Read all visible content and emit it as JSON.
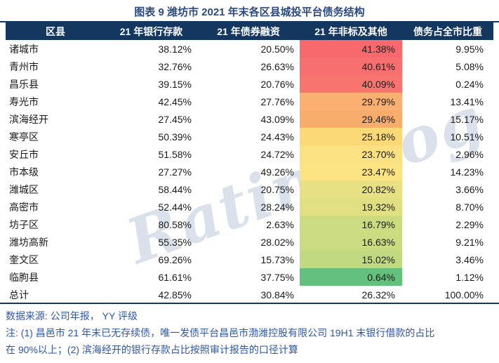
{
  "title": "图表 9 潍坊市 2021 年末各区县城投平台债务结构",
  "watermark": "Ratingdog",
  "colors": {
    "header_bg": "#14375f",
    "title_text": "#2b4a80",
    "note_text": "#3156a5",
    "rule": "#14375f",
    "watermark": "#c3cedd"
  },
  "table": {
    "columns": [
      "区县",
      "21 年银行存款",
      "21 年债券融资",
      "21 年非标及其他",
      "债务占全市比重"
    ],
    "rows": [
      {
        "name": "诸城市",
        "bank": "38.12%",
        "bond": "20.50%",
        "nonstd": "41.38%",
        "nonstd_bg": "#f7696c",
        "share": "9.95%"
      },
      {
        "name": "青州市",
        "bank": "32.76%",
        "bond": "26.63%",
        "nonstd": "40.61%",
        "nonstd_bg": "#f76f6e",
        "share": "5.08%"
      },
      {
        "name": "昌乐县",
        "bank": "39.15%",
        "bond": "20.76%",
        "nonstd": "40.09%",
        "nonstd_bg": "#f7746f",
        "share": "0.24%"
      },
      {
        "name": "寿光市",
        "bank": "42.45%",
        "bond": "27.76%",
        "nonstd": "29.79%",
        "nonstd_bg": "#f9b071",
        "share": "13.41%"
      },
      {
        "name": "滨海经开",
        "bank": "27.45%",
        "bond": "43.09%",
        "nonstd": "29.46%",
        "nonstd_bg": "#f9ad6c",
        "share": "15.17%"
      },
      {
        "name": "寒亭区",
        "bank": "50.39%",
        "bond": "24.43%",
        "nonstd": "25.18%",
        "nonstd_bg": "#fcd977",
        "share": "10.51%"
      },
      {
        "name": "安丘市",
        "bank": "51.58%",
        "bond": "24.72%",
        "nonstd": "23.70%",
        "nonstd_bg": "#fbe182",
        "share": "2.96%"
      },
      {
        "name": "市本级",
        "bank": "27.27%",
        "bond": "49.26%",
        "nonstd": "23.47%",
        "nonstd_bg": "#fce483",
        "share": "14.23%"
      },
      {
        "name": "潍城区",
        "bank": "58.44%",
        "bond": "20.75%",
        "nonstd": "20.82%",
        "nonstd_bg": "#e8e183",
        "share": "3.66%"
      },
      {
        "name": "高密市",
        "bank": "52.44%",
        "bond": "28.24%",
        "nonstd": "19.32%",
        "nonstd_bg": "#e0df82",
        "share": "8.70%"
      },
      {
        "name": "坊子区",
        "bank": "80.58%",
        "bond": "2.63%",
        "nonstd": "16.79%",
        "nonstd_bg": "#cbdb80",
        "share": "2.29%"
      },
      {
        "name": "潍坊高新",
        "bank": "55.35%",
        "bond": "28.02%",
        "nonstd": "16.63%",
        "nonstd_bg": "#cadb81",
        "share": "9.21%"
      },
      {
        "name": "奎文区",
        "bank": "69.26%",
        "bond": "15.73%",
        "nonstd": "15.02%",
        "nonstd_bg": "#c1d980",
        "share": "3.46%"
      },
      {
        "name": "临朐县",
        "bank": "61.61%",
        "bond": "37.75%",
        "nonstd": "0.64%",
        "nonstd_bg": "#63c17d",
        "share": "1.12%"
      },
      {
        "name": "总计",
        "bank": "42.85%",
        "bond": "30.84%",
        "nonstd": "26.32%",
        "nonstd_bg": "",
        "share": "100.00%"
      }
    ]
  },
  "footer": {
    "source": "数据来源: 公司年报， YY 评级",
    "note_line1": "注: (1) 昌邑市 21 年末已无存续债，唯一发债平台昌邑市渤潍控股有限公司 19H1 末银行借款的占比",
    "note_line2": "在 90%以上；(2) 滨海经开的银行存款占比按照审计报告的口径计算"
  }
}
